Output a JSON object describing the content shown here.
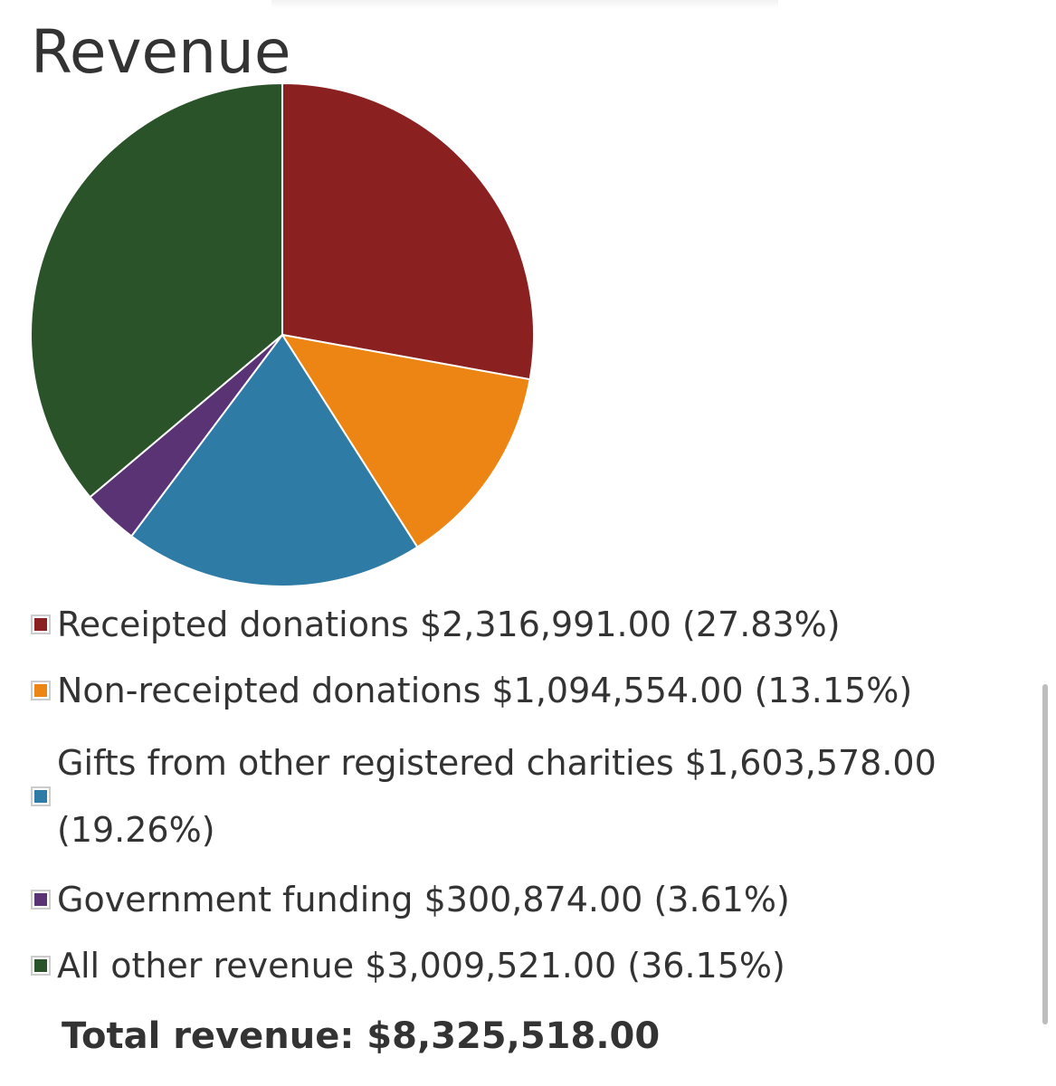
{
  "title": "Revenue",
  "chart_data": {
    "type": "pie",
    "title": "Revenue",
    "slices": [
      {
        "label": "Receipted donations",
        "amount": "$2,316,991.00",
        "percent_text": "(27.83%)",
        "value": 27.83,
        "color": "#8b2020"
      },
      {
        "label": "Non-receipted donations",
        "amount": "$1,094,554.00",
        "percent_text": "(13.15%)",
        "value": 13.15,
        "color": "#ed8514"
      },
      {
        "label": "Gifts from other registered charities",
        "amount": "$1,603,578.00",
        "percent_text": "(19.26%)",
        "value": 19.26,
        "color": "#2e7ba6"
      },
      {
        "label": "Government funding",
        "amount": "$300,874.00",
        "percent_text": "(3.61%)",
        "value": 3.61,
        "color": "#5a3374"
      },
      {
        "label": "All other revenue",
        "amount": "$3,009,521.00",
        "percent_text": "(36.15%)",
        "value": 36.15,
        "color": "#2b5329"
      }
    ]
  },
  "total": {
    "label": "Total revenue:",
    "value": "$8,325,518.00"
  }
}
